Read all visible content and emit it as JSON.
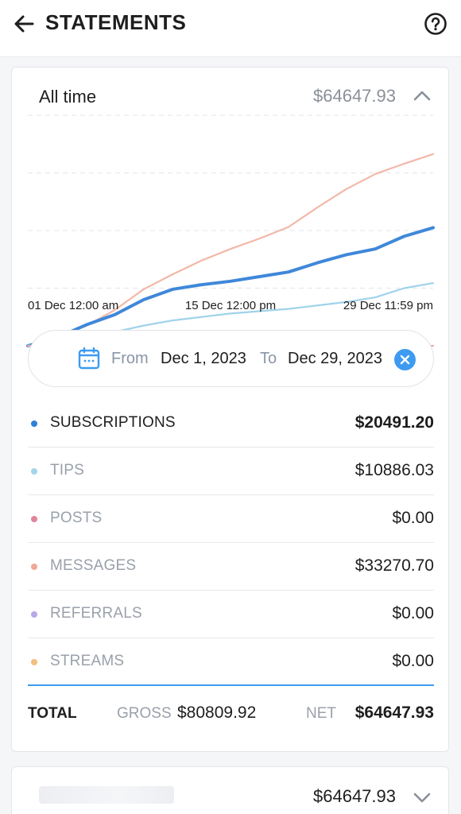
{
  "header": {
    "title": "STATEMENTS",
    "back_icon": "arrow-left-icon",
    "help_icon": "question-circle-icon"
  },
  "statement": {
    "range_label": "All time",
    "total": "$64647.93",
    "collapse_icon": "chevron-up-icon"
  },
  "chart_data": {
    "type": "line",
    "x_ticks": [
      "01 Dec 12:00 am",
      "15 Dec 12:00 pm",
      "29 Dec 11:59 pm"
    ],
    "xlim": [
      "Dec 1",
      "Dec 29"
    ],
    "ylim": [
      0,
      40000
    ],
    "grid": true,
    "x": [
      "Dec 1",
      "Dec 3",
      "Dec 5",
      "Dec 7",
      "Dec 9",
      "Dec 11",
      "Dec 13",
      "Dec 15",
      "Dec 17",
      "Dec 19",
      "Dec 21",
      "Dec 23",
      "Dec 25",
      "Dec 27",
      "Dec 29"
    ],
    "series": [
      {
        "key": "messages",
        "color": "#f2b8a8",
        "values": [
          0,
          1600,
          3400,
          6200,
          9800,
          12400,
          14800,
          16800,
          18600,
          20600,
          24000,
          27200,
          29800,
          31600,
          33270.7
        ]
      },
      {
        "key": "subscriptions",
        "color": "#3f88d9",
        "values": [
          0,
          1400,
          3600,
          5400,
          8000,
          9800,
          10600,
          11200,
          12000,
          12800,
          14400,
          15800,
          16800,
          19000,
          20491.2
        ]
      },
      {
        "key": "tips",
        "color": "#9fd3ea",
        "values": [
          0,
          400,
          1300,
          2400,
          3500,
          4400,
          5000,
          5600,
          6000,
          6400,
          7000,
          7600,
          8400,
          10000,
          10886.03
        ]
      },
      {
        "key": "posts",
        "color": "#f0a8a8",
        "values": [
          0,
          0,
          0,
          0,
          0,
          0,
          0,
          0,
          0,
          0,
          0,
          0,
          0,
          0,
          0
        ]
      }
    ]
  },
  "date_range": {
    "icon": "calendar-icon",
    "from_label": "From",
    "from_value": "Dec 1, 2023",
    "to_label": "To",
    "to_value": "Dec 29, 2023",
    "clear_icon": "close-circle-icon"
  },
  "categories": [
    {
      "label": "SUBSCRIPTIONS",
      "amount": "$20491.20",
      "color": "#2f7fd6"
    },
    {
      "label": "TIPS",
      "amount": "$10886.03",
      "color": "#a3d4ec"
    },
    {
      "label": "POSTS",
      "amount": "$0.00",
      "color": "#e0849c"
    },
    {
      "label": "MESSAGES",
      "amount": "$33270.70",
      "color": "#f0a896"
    },
    {
      "label": "REFERRALS",
      "amount": "$0.00",
      "color": "#b8a8e6"
    },
    {
      "label": "STREAMS",
      "amount": "$0.00",
      "color": "#f2bf7e"
    }
  ],
  "totals": {
    "label": "TOTAL",
    "gross_label": "GROSS",
    "gross_value": "$80809.92",
    "net_label": "NET",
    "net_value": "$64647.93"
  },
  "second_statement": {
    "total": "$64647.93",
    "expand_icon": "chevron-down-icon"
  }
}
